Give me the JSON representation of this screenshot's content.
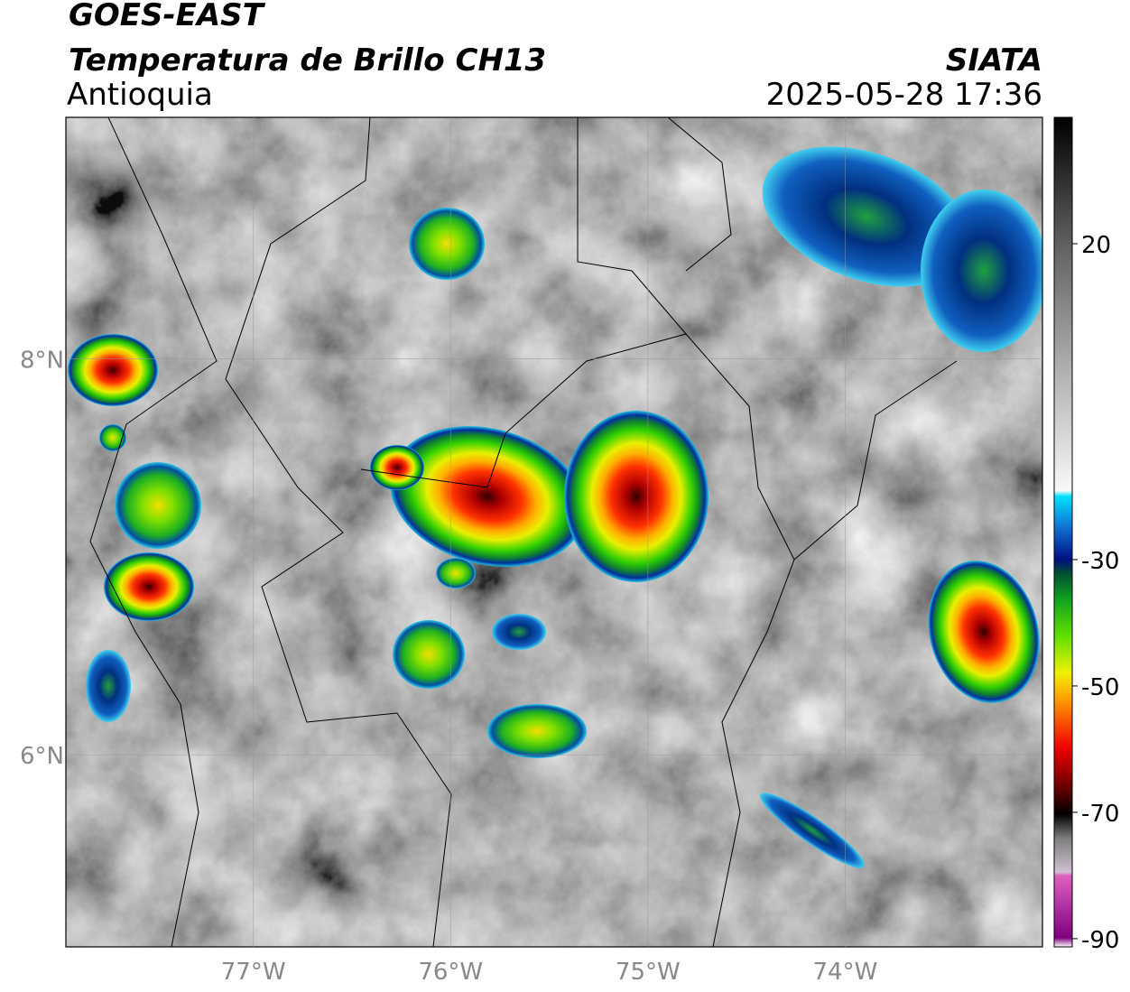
{
  "header": {
    "title": "GOES-EAST",
    "subtitle": "Temperatura de Brillo CH13",
    "region": "Antioquia",
    "agency": "SIATA",
    "datetime": "2025-05-28 17:36"
  },
  "map": {
    "xlim": [
      -77.95,
      -73.0
    ],
    "ylim": [
      5.03,
      9.22
    ],
    "xticks": [
      {
        "value": -77,
        "label": "77°W"
      },
      {
        "value": -76,
        "label": "76°W"
      },
      {
        "value": -75,
        "label": "75°W"
      },
      {
        "value": -74,
        "label": "74°W"
      }
    ],
    "yticks": [
      {
        "value": 8,
        "label": "8°N"
      },
      {
        "value": 6,
        "label": "6°N"
      }
    ]
  },
  "colorbar": {
    "lim": [
      -91.3,
      40
    ],
    "ticks": [
      20,
      -30,
      -50,
      -70,
      -90
    ]
  }
}
